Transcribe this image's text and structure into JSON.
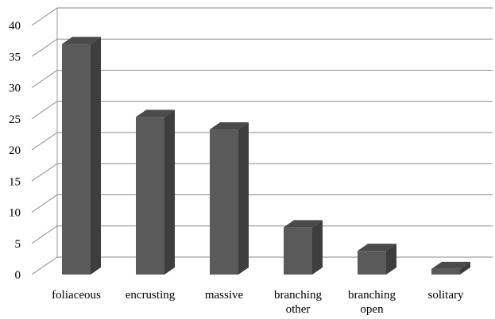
{
  "chart_data": {
    "type": "bar",
    "title": "",
    "xlabel": "",
    "ylabel": "",
    "ylim": [
      0,
      40
    ],
    "yticks": [
      0,
      5,
      10,
      15,
      20,
      25,
      30,
      35,
      40
    ],
    "grid": true,
    "style": "3d-column",
    "bar_color": "#5a5a5a",
    "categories": [
      [
        "foliaceous"
      ],
      [
        "encrusting"
      ],
      [
        "massive"
      ],
      [
        "branching",
        "other"
      ],
      [
        "branching",
        "open"
      ],
      [
        "solitary"
      ]
    ],
    "values": [
      37,
      25.3,
      23.3,
      7.6,
      3.8,
      0.9
    ]
  }
}
